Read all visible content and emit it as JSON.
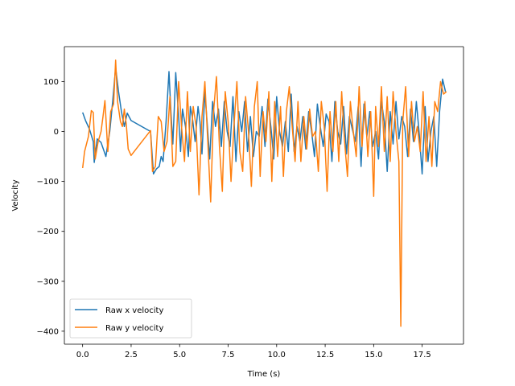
{
  "chart_data": {
    "type": "line",
    "title": "",
    "xlabel": "Time (s)",
    "ylabel": "Velocity",
    "xlim": [
      -0.94,
      19.63
    ],
    "ylim": [
      -426,
      170
    ],
    "xticks": [
      0.0,
      2.5,
      5.0,
      7.5,
      10.0,
      12.5,
      15.0,
      17.5
    ],
    "xtick_labels": [
      "0.0",
      "2.5",
      "5.0",
      "7.5",
      "10.0",
      "12.5",
      "15.0",
      "17.5"
    ],
    "yticks": [
      100,
      0,
      -100,
      -200,
      -300,
      -400
    ],
    "ytick_labels": [
      "100",
      "0",
      "−100",
      "−200",
      "−300",
      "−400"
    ],
    "grid": false,
    "legend": {
      "placement": "lower-left"
    },
    "series": [
      {
        "name": "Raw x velocity",
        "color": "#1f77b4",
        "x": [
          0.0,
          0.15,
          0.35,
          0.55,
          0.6,
          0.75,
          0.95,
          1.2,
          1.4,
          1.55,
          1.7,
          1.85,
          2.0,
          2.15,
          2.3,
          2.5,
          3.5,
          3.65,
          3.8,
          3.95,
          4.05,
          4.15,
          4.3,
          4.45,
          4.55,
          4.65,
          4.8,
          4.95,
          5.05,
          5.15,
          5.3,
          5.45,
          5.55,
          5.65,
          5.8,
          5.95,
          6.05,
          6.15,
          6.3,
          6.45,
          6.55,
          6.7,
          6.85,
          7.0,
          7.15,
          7.3,
          7.45,
          7.6,
          7.75,
          7.9,
          8.05,
          8.2,
          8.35,
          8.5,
          8.65,
          8.8,
          8.95,
          9.1,
          9.25,
          9.4,
          9.55,
          9.7,
          9.85,
          10.0,
          10.15,
          10.3,
          10.45,
          10.6,
          10.75,
          10.9,
          11.05,
          11.2,
          11.35,
          11.5,
          11.65,
          11.8,
          11.95,
          12.1,
          12.25,
          12.4,
          12.55,
          12.7,
          12.85,
          13.0,
          13.15,
          13.3,
          13.45,
          13.6,
          13.75,
          13.9,
          14.05,
          14.2,
          14.35,
          14.5,
          14.65,
          14.8,
          14.95,
          15.1,
          15.25,
          15.4,
          15.55,
          15.7,
          15.85,
          16.0,
          16.15,
          16.3,
          16.45,
          16.6,
          16.75,
          16.9,
          17.05,
          17.2,
          17.35,
          17.5,
          17.65,
          17.8,
          17.95,
          18.1,
          18.25,
          18.4,
          18.55,
          18.7
        ],
        "y": [
          38,
          22,
          5,
          -20,
          -62,
          -15,
          -22,
          -50,
          0,
          60,
          128,
          80,
          40,
          10,
          37,
          22,
          0,
          -85,
          -75,
          -70,
          -50,
          -60,
          20,
          120,
          40,
          -25,
          118,
          30,
          -40,
          45,
          10,
          -50,
          50,
          30,
          -20,
          50,
          20,
          -45,
          80,
          0,
          -55,
          60,
          10,
          45,
          -30,
          60,
          0,
          -30,
          70,
          -60,
          40,
          0,
          60,
          -40,
          30,
          -50,
          0,
          -10,
          50,
          -30,
          65,
          10,
          -55,
          70,
          0,
          -30,
          20,
          -40,
          75,
          -40,
          10,
          -20,
          30,
          -35,
          40,
          0,
          -50,
          55,
          10,
          -30,
          35,
          20,
          -60,
          60,
          0,
          -25,
          50,
          -45,
          30,
          5,
          -20,
          50,
          -70,
          55,
          -10,
          40,
          -30,
          0,
          -55,
          60,
          20,
          -80,
          40,
          -25,
          60,
          -15,
          30,
          10,
          -50,
          45,
          -20,
          60,
          -5,
          -85,
          50,
          -60,
          0,
          30,
          -70,
          40,
          105,
          80
        ]
      },
      {
        "name": "Raw y velocity",
        "color": "#ff7f0e",
        "x": [
          0.0,
          0.1,
          0.3,
          0.45,
          0.55,
          0.65,
          0.8,
          0.95,
          1.05,
          1.15,
          1.3,
          1.45,
          1.6,
          1.7,
          1.8,
          1.95,
          2.05,
          2.15,
          2.25,
          2.35,
          2.5,
          3.5,
          3.6,
          3.75,
          3.9,
          4.05,
          4.2,
          4.35,
          4.5,
          4.65,
          4.8,
          4.95,
          5.1,
          5.25,
          5.4,
          5.55,
          5.7,
          5.85,
          6.0,
          6.15,
          6.3,
          6.45,
          6.6,
          6.75,
          6.9,
          7.05,
          7.2,
          7.35,
          7.5,
          7.65,
          7.8,
          7.95,
          8.1,
          8.25,
          8.4,
          8.55,
          8.7,
          8.85,
          9.0,
          9.15,
          9.3,
          9.45,
          9.6,
          9.75,
          9.9,
          10.05,
          10.2,
          10.35,
          10.5,
          10.65,
          10.8,
          10.95,
          11.1,
          11.25,
          11.4,
          11.55,
          11.7,
          11.85,
          12.0,
          12.15,
          12.3,
          12.45,
          12.6,
          12.75,
          12.9,
          13.05,
          13.2,
          13.35,
          13.5,
          13.65,
          13.8,
          13.95,
          14.1,
          14.25,
          14.4,
          14.55,
          14.7,
          14.85,
          15.0,
          15.1,
          15.25,
          15.4,
          15.55,
          15.7,
          15.85,
          16.0,
          16.15,
          16.3,
          16.4,
          16.5,
          16.65,
          16.8,
          16.95,
          17.1,
          17.25,
          17.4,
          17.55,
          17.7,
          17.85,
          18.0,
          18.15,
          18.3,
          18.45,
          18.6,
          18.75
        ],
        "y": [
          -73,
          -40,
          -10,
          42,
          38,
          -55,
          -20,
          0,
          30,
          62,
          -40,
          40,
          55,
          143,
          60,
          20,
          10,
          45,
          15,
          -35,
          -48,
          2,
          -80,
          -70,
          30,
          20,
          -40,
          -20,
          70,
          -70,
          -60,
          100,
          10,
          -60,
          80,
          -40,
          50,
          10,
          -127,
          30,
          100,
          -20,
          -141,
          40,
          110,
          -30,
          -120,
          80,
          20,
          -100,
          10,
          100,
          -40,
          -80,
          70,
          0,
          -110,
          50,
          100,
          -90,
          40,
          -20,
          80,
          -100,
          60,
          -50,
          50,
          -90,
          40,
          90,
          10,
          -60,
          60,
          -60,
          30,
          -35,
          45,
          -10,
          0,
          -80,
          60,
          10,
          -120,
          40,
          -40,
          60,
          -60,
          80,
          -20,
          -90,
          60,
          0,
          -50,
          90,
          -30,
          60,
          -50,
          40,
          -130,
          50,
          -30,
          90,
          -40,
          70,
          -60,
          80,
          0,
          -60,
          -390,
          20,
          90,
          -50,
          60,
          -20,
          10,
          -40,
          80,
          -60,
          30,
          -70,
          60,
          40,
          100,
          75,
          80
        ]
      }
    ]
  }
}
